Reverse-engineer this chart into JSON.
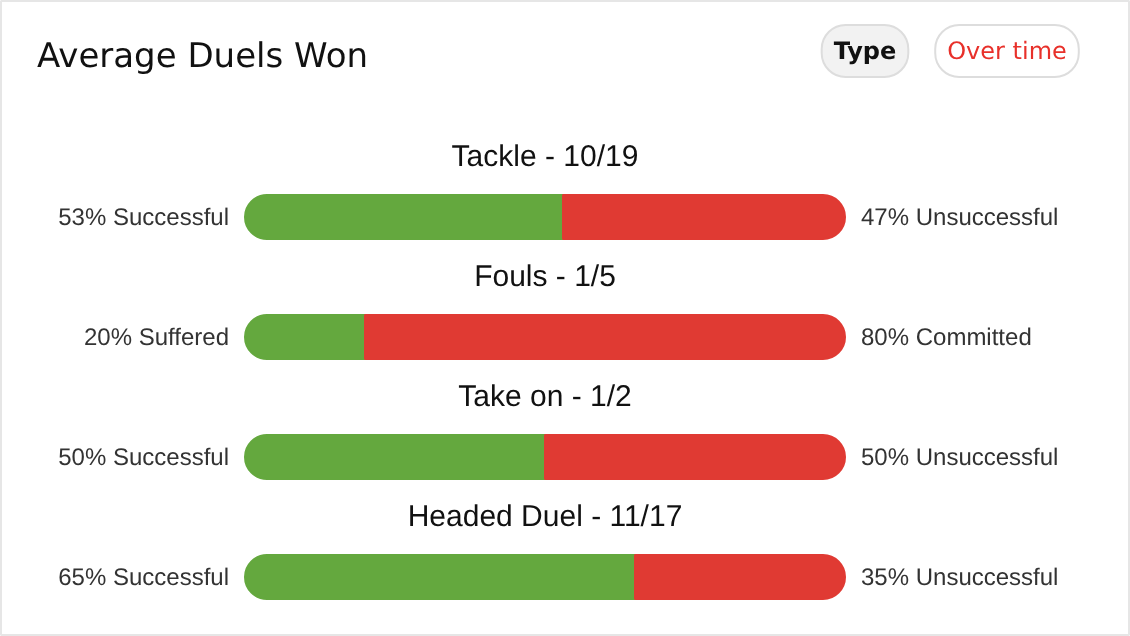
{
  "chart_data": {
    "type": "bar",
    "orientation": "horizontal",
    "stacked": true,
    "title": "Average Duels Won",
    "categories": [
      "Tackle - 10/19",
      "Fouls - 1/5",
      "Take on - 1/2",
      "Headed Duel - 11/17"
    ],
    "xlim": [
      0,
      100
    ],
    "tick_labels": false,
    "grid": false,
    "series": [
      {
        "color": "#64a83e",
        "values": [
          53,
          20,
          50,
          65
        ],
        "value_labels": [
          "53% Successful",
          "20% Suffered",
          "50% Successful",
          "65% Successful"
        ]
      },
      {
        "color": "#e03a33",
        "values": [
          47,
          80,
          50,
          35
        ],
        "value_labels": [
          "47% Unsuccessful",
          "80% Committed",
          "50% Unsuccessful",
          "35% Unsuccessful"
        ]
      }
    ],
    "annotations": [
      "Type",
      "Over time"
    ]
  }
}
